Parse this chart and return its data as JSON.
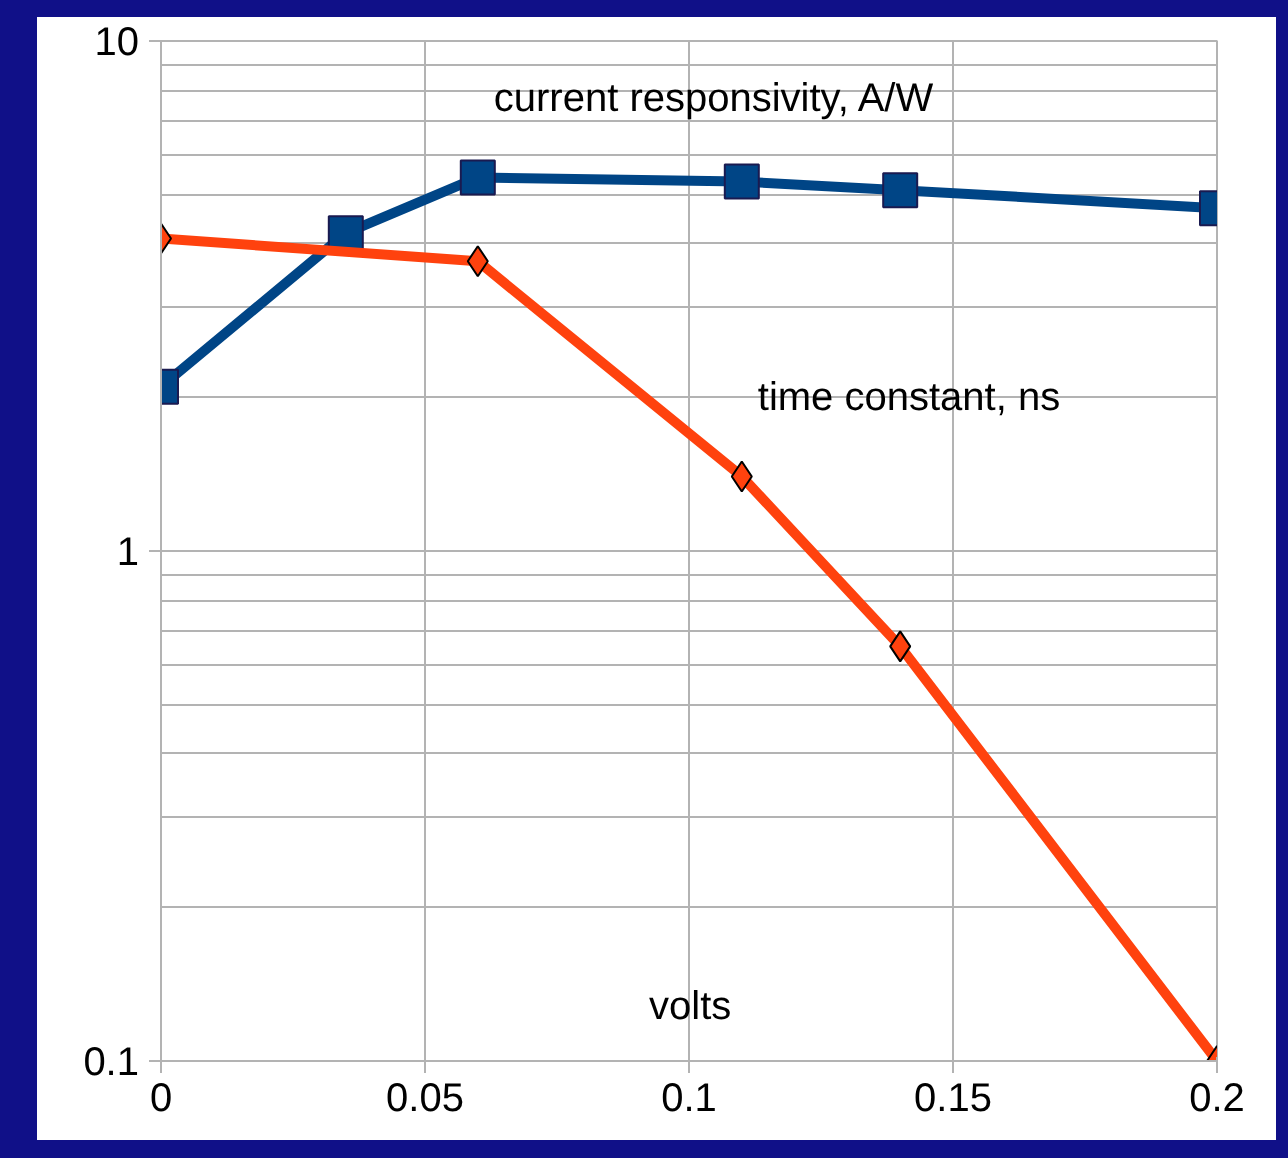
{
  "chart_data": {
    "type": "line",
    "xlabel": "volts",
    "log": "y",
    "grid": true,
    "xlim": [
      0,
      0.2
    ],
    "ylim": [
      0.1,
      10
    ],
    "xticks": [
      0,
      0.05,
      0.1,
      0.15,
      0.2
    ],
    "yticks": [
      0.1,
      1,
      10
    ],
    "series": [
      {
        "name": "current responsivity, A/W",
        "color": "#004586",
        "marker": "square",
        "x": [
          0,
          0.035,
          0.06,
          0.11,
          0.14,
          0.2
        ],
        "values": [
          2.1,
          4.2,
          5.4,
          5.3,
          5.1,
          4.7
        ]
      },
      {
        "name": "time constant, ns",
        "color": "#ff420e",
        "marker": "diamond",
        "x": [
          0,
          0.06,
          0.11,
          0.14,
          0.2
        ],
        "values": [
          4.1,
          3.7,
          1.4,
          0.65,
          0.1
        ]
      }
    ]
  }
}
